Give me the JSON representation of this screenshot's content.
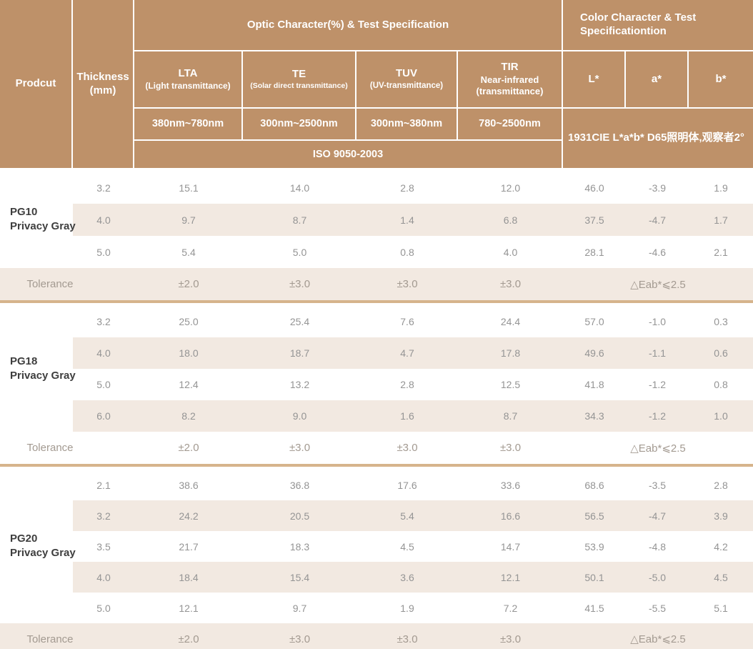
{
  "theme": {
    "header_bg": "#BE9169",
    "header_text": "#FFFFFF",
    "row_alt_bg": "#F2E9E1",
    "divider": "#D6B48C",
    "value_text": "#949494",
    "tolerance_text": "#A39A91",
    "product_text": "#3E3E3E"
  },
  "header": {
    "product_label": "Prodcut",
    "thickness_label": "Thickness",
    "thickness_unit": "(mm)",
    "optic_group": "Optic Character(%) & Test Specification",
    "color_group": "Color Character & Test Specificationtion",
    "columns": [
      {
        "name": "LTA",
        "desc": "(Light transmittance)",
        "range": "380nm~780nm"
      },
      {
        "name": "TE",
        "desc": "(Solar direct transmittance)",
        "range": "300nm~2500nm"
      },
      {
        "name": "TUV",
        "desc": "(UV-transmittance)",
        "range": "300nm~380nm"
      },
      {
        "name": "TIR",
        "desc": "Near-infrared",
        "desc2": "(transmittance)",
        "range": "780~2500nm"
      }
    ],
    "color_columns": [
      "L*",
      "a*",
      "b*"
    ],
    "iso_standard": "ISO 9050-2003",
    "cie_note": "1931CIE L*a*b*  D65照明体,观察者2°"
  },
  "sections": [
    {
      "product": "PG10",
      "product_sub": "Privacy Gray",
      "rows": [
        {
          "thickness": "3.2",
          "values": [
            "15.1",
            "14.0",
            "2.8",
            "12.0",
            "46.0",
            "-3.9",
            "1.9"
          ]
        },
        {
          "thickness": "4.0",
          "values": [
            "9.7",
            "8.7",
            "1.4",
            "6.8",
            "37.5",
            "-4.7",
            "1.7"
          ]
        },
        {
          "thickness": "5.0",
          "values": [
            "5.4",
            "5.0",
            "0.8",
            "4.0",
            "28.1",
            "-4.6",
            "2.1"
          ]
        }
      ],
      "tolerance": {
        "label": "Tolerance",
        "values": [
          "±2.0",
          "±3.0",
          "±3.0",
          "±3.0"
        ],
        "color_tolerance": "△Eab*⩽2.5"
      }
    },
    {
      "product": "PG18",
      "product_sub": "Privacy Gray",
      "rows": [
        {
          "thickness": "3.2",
          "values": [
            "25.0",
            "25.4",
            "7.6",
            "24.4",
            "57.0",
            "-1.0",
            "0.3"
          ]
        },
        {
          "thickness": "4.0",
          "values": [
            "18.0",
            "18.7",
            "4.7",
            "17.8",
            "49.6",
            "-1.1",
            "0.6"
          ]
        },
        {
          "thickness": "5.0",
          "values": [
            "12.4",
            "13.2",
            "2.8",
            "12.5",
            "41.8",
            "-1.2",
            "0.8"
          ]
        },
        {
          "thickness": "6.0",
          "values": [
            "8.2",
            "9.0",
            "1.6",
            "8.7",
            "34.3",
            "-1.2",
            "1.0"
          ]
        }
      ],
      "tolerance": {
        "label": "Tolerance",
        "values": [
          "±2.0",
          "±3.0",
          "±3.0",
          "±3.0"
        ],
        "color_tolerance": "△Eab*⩽2.5"
      }
    },
    {
      "product": "PG20",
      "product_sub": "Privacy Gray",
      "rows": [
        {
          "thickness": "2.1",
          "values": [
            "38.6",
            "36.8",
            "17.6",
            "33.6",
            "68.6",
            "-3.5",
            "2.8"
          ]
        },
        {
          "thickness": "3.2",
          "values": [
            "24.2",
            "20.5",
            "5.4",
            "16.6",
            "56.5",
            "-4.7",
            "3.9"
          ]
        },
        {
          "thickness": "3.5",
          "values": [
            "21.7",
            "18.3",
            "4.5",
            "14.7",
            "53.9",
            "-4.8",
            "4.2"
          ]
        },
        {
          "thickness": "4.0",
          "values": [
            "18.4",
            "15.4",
            "3.6",
            "12.1",
            "50.1",
            "-5.0",
            "4.5"
          ]
        },
        {
          "thickness": "5.0",
          "values": [
            "12.1",
            "9.7",
            "1.9",
            "7.2",
            "41.5",
            "-5.5",
            "5.1"
          ]
        }
      ],
      "tolerance": {
        "label": "Tolerance",
        "values": [
          "±2.0",
          "±3.0",
          "±3.0",
          "±3.0"
        ],
        "color_tolerance": "△Eab*⩽2.5"
      }
    }
  ]
}
